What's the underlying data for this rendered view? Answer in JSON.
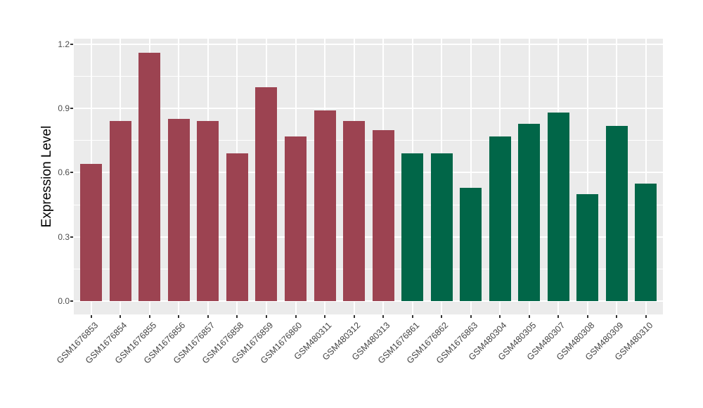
{
  "chart_data": {
    "type": "bar",
    "title": "",
    "xlabel": "",
    "ylabel": "Expression Level",
    "categories": [
      "GSM1676853",
      "GSM1676854",
      "GSM1676855",
      "GSM1676856",
      "GSM1676857",
      "GSM1676858",
      "GSM1676859",
      "GSM1676860",
      "GSM480311",
      "GSM480312",
      "GSM480313",
      "GSM1676861",
      "GSM1676862",
      "GSM1676863",
      "GSM480304",
      "GSM480305",
      "GSM480307",
      "GSM480308",
      "GSM480309",
      "GSM480310"
    ],
    "values": [
      0.64,
      0.84,
      1.16,
      0.85,
      0.84,
      0.69,
      1.0,
      0.77,
      0.89,
      0.84,
      0.8,
      0.69,
      0.69,
      0.53,
      0.77,
      0.83,
      0.88,
      0.5,
      0.82,
      0.55
    ],
    "bar_groups": [
      "group1",
      "group1",
      "group1",
      "group1",
      "group1",
      "group1",
      "group1",
      "group1",
      "group1",
      "group1",
      "group1",
      "group2",
      "group2",
      "group2",
      "group2",
      "group2",
      "group2",
      "group2",
      "group2",
      "group2"
    ],
    "group_colors": {
      "group1": "#9C4351",
      "group2": "#016648"
    },
    "ytick_labels": [
      "0.0",
      "0.3",
      "0.6",
      "0.9",
      "1.2"
    ],
    "ytick_values": [
      0,
      0.3,
      0.6,
      0.9,
      1.2
    ],
    "minor_gridline_values": [
      0.15,
      0.45,
      0.75,
      1.05
    ],
    "ylim": [
      0,
      1.2
    ],
    "grid": true,
    "legend_position": "none",
    "panel_background": "#EBEBEB",
    "gridline_color": "#FFFFFF",
    "label_rotation_deg": 45
  }
}
